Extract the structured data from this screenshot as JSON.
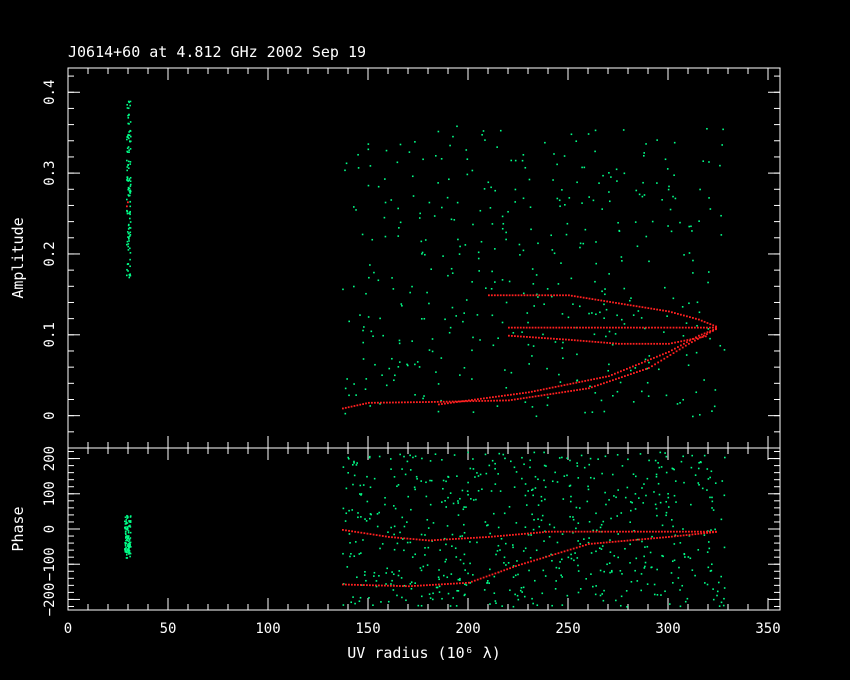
{
  "chart_data": [
    {
      "type": "scatter",
      "title": "J0614+60 at 4.812 GHz 2002 Sep 19",
      "ylabel": "Amplitude",
      "xlim": [
        0,
        356
      ],
      "ylim": [
        -0.04,
        0.43
      ],
      "yticks": [
        0,
        0.1,
        0.2,
        0.3,
        0.4
      ],
      "ytick_labels": [
        "0",
        "0.1",
        "0.2",
        "0.3",
        "0.4"
      ],
      "series": [
        {
          "color": "#00ff88",
          "clusters": [
            {
              "x": [
                29,
                31
              ],
              "y": [
                0.17,
                0.39
              ],
              "count": 120
            },
            {
              "x": [
                137,
                328
              ],
              "y": [
                0.0,
                0.36
              ],
              "count": 420,
              "note": ""
            }
          ]
        },
        {
          "color": "#ff2020",
          "curves": [
            {
              "points": [
                [
                  137,
                  0.01
                ],
                [
                  150,
                  0.017
                ],
                [
                  180,
                  0.018
                ],
                [
                  220,
                  0.02
                ],
                [
                  260,
                  0.035
                ],
                [
                  290,
                  0.06
                ],
                [
                  310,
                  0.09
                ],
                [
                  325,
                  0.11
                ]
              ]
            },
            {
              "points": [
                [
                  185,
                  0.015
                ],
                [
                  230,
                  0.03
                ],
                [
                  270,
                  0.05
                ],
                [
                  300,
                  0.08
                ],
                [
                  315,
                  0.1
                ],
                [
                  325,
                  0.11
                ]
              ]
            },
            {
              "points": [
                [
                  210,
                  0.15
                ],
                [
                  250,
                  0.15
                ],
                [
                  275,
                  0.14
                ],
                [
                  300,
                  0.13
                ],
                [
                  315,
                  0.12
                ],
                [
                  325,
                  0.11
                ]
              ]
            },
            {
              "points": [
                [
                  220,
                  0.11
                ],
                [
                  260,
                  0.11
                ],
                [
                  290,
                  0.11
                ],
                [
                  310,
                  0.11
                ],
                [
                  325,
                  0.11
                ]
              ]
            },
            {
              "points": [
                [
                  220,
                  0.1
                ],
                [
                  250,
                  0.095
                ],
                [
                  275,
                  0.09
                ],
                [
                  300,
                  0.09
                ],
                [
                  320,
                  0.1
                ]
              ]
            },
            {
              "points": [
                [
                  29,
                  0.26
                ],
                [
                  30,
                  0.27
                ]
              ]
            }
          ]
        }
      ]
    },
    {
      "type": "scatter",
      "ylabel": "Phase",
      "xlabel": "UV radius  (10⁶ λ)",
      "xlim": [
        0,
        356
      ],
      "ylim": [
        -230,
        230
      ],
      "xticks": [
        0,
        50,
        100,
        150,
        200,
        250,
        300,
        350
      ],
      "xtick_labels": [
        "0",
        "50",
        "100",
        "150",
        "200",
        "250",
        "300",
        "350"
      ],
      "yticks": [
        -200,
        -100,
        0,
        100,
        200
      ],
      "ytick_labels": [
        "−200",
        "−100",
        "0",
        "100",
        "200"
      ],
      "series": [
        {
          "color": "#00ff88",
          "clusters": [
            {
              "x": [
                28,
                31
              ],
              "y": [
                -80,
                40
              ],
              "count": 110
            },
            {
              "x": [
                137,
                328
              ],
              "y": [
                -220,
                220
              ],
              "count": 650
            }
          ]
        },
        {
          "color": "#ff2020",
          "curves": [
            {
              "points": [
                [
                  137,
                  0
                ],
                [
                  160,
                  -20
                ],
                [
                  180,
                  -30
                ],
                [
                  210,
                  -20
                ],
                [
                  240,
                  -5
                ],
                [
                  280,
                  -5
                ],
                [
                  325,
                  -5
                ]
              ]
            },
            {
              "points": [
                [
                  137,
                  -155
                ],
                [
                  170,
                  -160
                ],
                [
                  200,
                  -150
                ],
                [
                  225,
                  -100
                ],
                [
                  260,
                  -40
                ],
                [
                  300,
                  -20
                ],
                [
                  325,
                  -5
                ]
              ]
            }
          ]
        }
      ]
    }
  ]
}
